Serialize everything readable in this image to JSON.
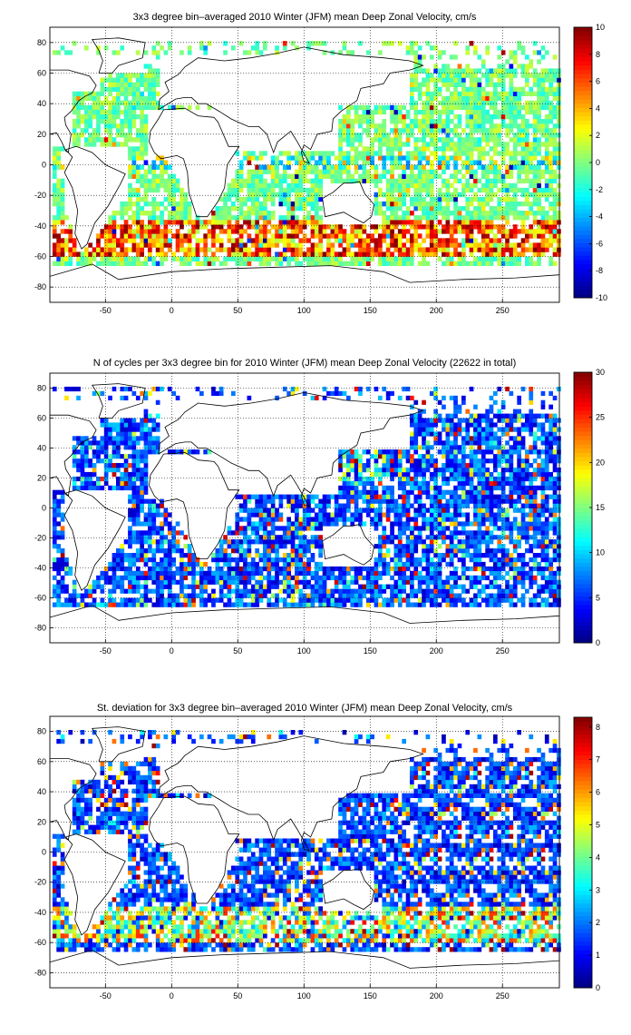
{
  "figure": {
    "colormap": "jet",
    "cell_note": "colored 3x3 degree bins over a world map; individual bin values are not legible"
  },
  "chart_data": [
    {
      "type": "heatmap",
      "title": "3x3 degree bin–averaged 2010 Winter (JFM) mean Deep Zonal Velocity, cm/s",
      "xlabel": "",
      "ylabel": "",
      "xlim": [
        -92,
        293
      ],
      "ylim": [
        -90,
        90
      ],
      "xticks": [
        "-50",
        "0",
        "50",
        "100",
        "150",
        "200",
        "250"
      ],
      "yticks": [
        "80",
        "60",
        "40",
        "20",
        "0",
        "-20",
        "-40",
        "-60",
        "-80"
      ],
      "grid": true,
      "colorbar": {
        "min": -10,
        "max": 10,
        "ticks": [
          "10",
          "8",
          "6",
          "4",
          "2",
          "0",
          "-2",
          "-4",
          "-6",
          "-8",
          "-10"
        ]
      }
    },
    {
      "type": "heatmap",
      "title": "N of cycles per 3x3 degree bin for 2010 Winter (JFM) mean Deep Zonal Velocity (22622 in total)",
      "xlabel": "",
      "ylabel": "",
      "xlim": [
        -92,
        293
      ],
      "ylim": [
        -90,
        90
      ],
      "xticks": [
        "-50",
        "0",
        "50",
        "100",
        "150",
        "200",
        "250"
      ],
      "yticks": [
        "80",
        "60",
        "40",
        "20",
        "0",
        "-20",
        "-40",
        "-60",
        "-80"
      ],
      "grid": true,
      "colorbar": {
        "min": 0,
        "max": 30,
        "ticks": [
          "30",
          "25",
          "20",
          "15",
          "10",
          "5",
          "0"
        ]
      }
    },
    {
      "type": "heatmap",
      "title": "St. deviation for 3x3 degree bin–averaged 2010 Winter (JFM) mean Deep Zonal Velocity, cm/s",
      "xlabel": "",
      "ylabel": "",
      "xlim": [
        -92,
        293
      ],
      "ylim": [
        -90,
        90
      ],
      "xticks": [
        "-50",
        "0",
        "50",
        "100",
        "150",
        "200",
        "250"
      ],
      "yticks": [
        "80",
        "60",
        "40",
        "20",
        "0",
        "-20",
        "-40",
        "-60",
        "-80"
      ],
      "grid": true,
      "colorbar": {
        "min": 0,
        "max": 8.3,
        "ticks": [
          "8",
          "7",
          "6",
          "5",
          "4",
          "3",
          "2",
          "1",
          "0"
        ]
      }
    }
  ]
}
